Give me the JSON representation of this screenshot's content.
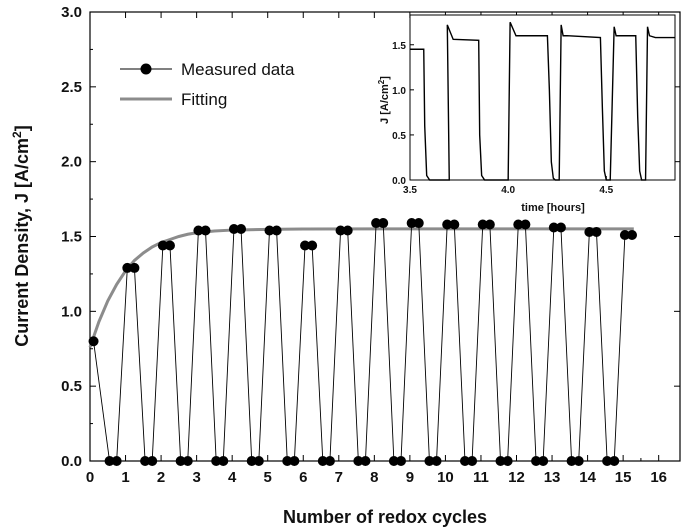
{
  "chart_data": [
    {
      "type": "scatter",
      "xlabel": "Number of redox cycles",
      "ylabel_main": "Current Density, J [A/cm",
      "ylabel_sup": "2",
      "ylabel_tail": "]",
      "xlim": [
        0,
        16.6
      ],
      "ylim": [
        0,
        3.0
      ],
      "xticks": [
        0,
        1,
        2,
        3,
        4,
        5,
        6,
        7,
        8,
        9,
        10,
        11,
        12,
        13,
        14,
        15,
        16
      ],
      "yticks": [
        "0.0",
        "0.5",
        "1.0",
        "1.5",
        "2.0",
        "2.5",
        "3.0"
      ],
      "grid": false,
      "legend_position": "top-left",
      "series": [
        {
          "name": "Measured data",
          "color": "#000000",
          "marker": "circle",
          "line": "connected",
          "x": [
            0.1,
            0.55,
            0.75,
            1.05,
            1.25,
            1.55,
            1.75,
            2.05,
            2.25,
            2.55,
            2.75,
            3.05,
            3.25,
            3.55,
            3.75,
            4.05,
            4.25,
            4.55,
            4.75,
            5.05,
            5.25,
            5.55,
            5.75,
            6.05,
            6.25,
            6.55,
            6.75,
            7.05,
            7.25,
            7.55,
            7.75,
            8.05,
            8.25,
            8.55,
            8.75,
            9.05,
            9.25,
            9.55,
            9.75,
            10.05,
            10.25,
            10.55,
            10.75,
            11.05,
            11.25,
            11.55,
            11.75,
            12.05,
            12.25,
            12.55,
            12.75,
            13.05,
            13.25,
            13.55,
            13.75,
            14.05,
            14.25,
            14.55,
            14.75,
            15.05,
            15.25
          ],
          "y": [
            0.8,
            0.0,
            0.0,
            1.29,
            1.29,
            0.0,
            0.0,
            1.44,
            1.44,
            0.0,
            0.0,
            1.54,
            1.54,
            0.0,
            0.0,
            1.55,
            1.55,
            0.0,
            0.0,
            1.54,
            1.54,
            0.0,
            0.0,
            1.44,
            1.44,
            0.0,
            0.0,
            1.54,
            1.54,
            0.0,
            0.0,
            1.59,
            1.59,
            0.0,
            0.0,
            1.59,
            1.59,
            0.0,
            0.0,
            1.58,
            1.58,
            0.0,
            0.0,
            1.58,
            1.58,
            0.0,
            0.0,
            1.58,
            1.58,
            0.0,
            0.0,
            1.56,
            1.56,
            0.0,
            0.0,
            1.53,
            1.53,
            0.0,
            0.0,
            1.51,
            1.51
          ]
        },
        {
          "name": "Fitting",
          "color": "#8c8c8c",
          "marker": "none",
          "line": "solid",
          "x": [
            0,
            0.25,
            0.5,
            0.75,
            1.0,
            1.25,
            1.5,
            1.75,
            2.0,
            2.25,
            2.5,
            2.75,
            3.0,
            3.5,
            4.0,
            5.0,
            6.0,
            8.0,
            10.0,
            12.0,
            14.0,
            15.3
          ],
          "y": [
            0.76,
            0.93,
            1.07,
            1.18,
            1.27,
            1.34,
            1.39,
            1.43,
            1.46,
            1.48,
            1.5,
            1.515,
            1.525,
            1.537,
            1.543,
            1.548,
            1.55,
            1.551,
            1.551,
            1.551,
            1.551,
            1.551
          ]
        }
      ]
    },
    {
      "type": "line",
      "xlabel": "time [hours]",
      "ylabel_main": "J [A/cm",
      "ylabel_sup": "2",
      "ylabel_tail": "]",
      "xlim": [
        3.5,
        4.85
      ],
      "ylim": [
        0,
        1.83
      ],
      "xticks": [
        "3.5",
        "4.0",
        "4.5"
      ],
      "yticks": [
        "0.0",
        "0.5",
        "1.0",
        "1.5"
      ],
      "series": [
        {
          "name": "",
          "color": "#000000",
          "x": [
            3.5,
            3.57,
            3.575,
            3.585,
            3.6,
            3.7,
            3.69,
            3.72,
            3.85,
            3.855,
            3.865,
            3.88,
            3.9,
            4.0,
            4.01,
            4.04,
            4.2,
            4.21,
            4.22,
            4.23,
            4.24,
            4.26,
            4.27,
            4.28,
            4.3,
            4.47,
            4.48,
            4.49,
            4.5,
            4.51,
            4.52,
            4.54,
            4.55,
            4.65,
            4.66,
            4.67,
            4.68,
            4.7,
            4.71,
            4.72,
            4.75,
            4.85
          ],
          "y": [
            1.45,
            1.45,
            0.6,
            0.05,
            0.0,
            0.0,
            1.72,
            1.56,
            1.55,
            0.5,
            0.05,
            0.0,
            0.0,
            0.0,
            1.75,
            1.6,
            1.6,
            1.0,
            0.2,
            0.02,
            0.0,
            0.0,
            1.72,
            1.6,
            1.6,
            1.58,
            0.8,
            0.1,
            0.0,
            0.0,
            0.0,
            1.7,
            1.6,
            1.6,
            0.7,
            0.1,
            0.0,
            0.0,
            1.7,
            1.6,
            1.58,
            1.58
          ]
        }
      ]
    }
  ]
}
